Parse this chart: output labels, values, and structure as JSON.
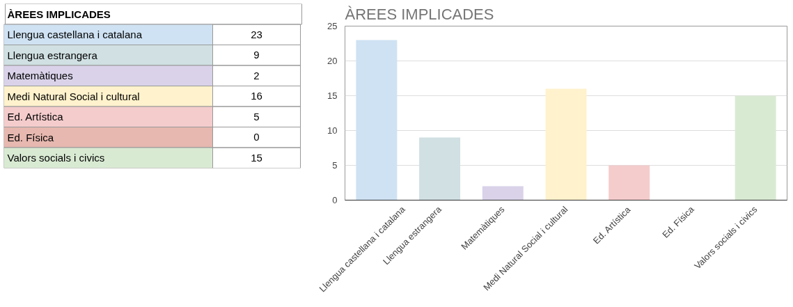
{
  "chart_data": [
    {
      "type": "other",
      "title": "ÀREES IMPLICADES",
      "categories": [
        "Llengua castellana i catalana",
        "Llengua estrangera",
        "Matemàtiques",
        "Medi Natural Social i cultural",
        "Ed. Artística",
        "Ed. Física",
        "Valors socials i civics"
      ],
      "values": [
        23,
        9,
        2,
        16,
        5,
        0,
        15
      ],
      "colors": [
        "#cfe2f3",
        "#d0e0e3",
        "#d9d2e9",
        "#fff2cc",
        "#f4cccc",
        "#e6b8af",
        "#d9ead3"
      ],
      "data_labels": true
    },
    {
      "type": "bar",
      "title": "ÀREES IMPLICADES",
      "categories": [
        "Llengua castellana i catalana",
        "Llengua estrangera",
        "Matemàtiques",
        "Medi Natural Social i cultural",
        "Ed. Artística",
        "Ed. Física",
        "Valors socials i civics"
      ],
      "values": [
        23,
        9,
        2,
        16,
        5,
        0,
        15
      ],
      "colors": [
        "#cfe2f3",
        "#d0e0e3",
        "#d9d2e9",
        "#fff2cc",
        "#f4cccc",
        "#e6b8af",
        "#d9ead3"
      ],
      "ylim": [
        0,
        25
      ],
      "yticks": [
        0,
        5,
        10,
        15,
        20,
        25
      ],
      "grid": "y",
      "legend": false
    }
  ]
}
